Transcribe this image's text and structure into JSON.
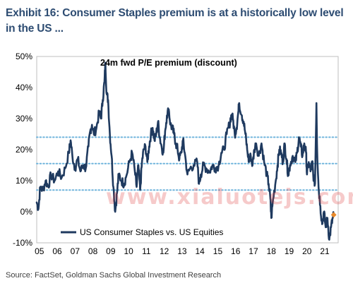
{
  "exhibit_title": "Exhibit 16: Consumer Staples premium is at a historically low level in the US ...",
  "source": "Source: FactSet, Goldman Sachs Global Investment Research",
  "watermark": "www.xialuotejs.com",
  "colors": {
    "title": "#2d4c72",
    "series": "#1f3a5f",
    "reference_lines": "#6fb4dc",
    "marker": "#e8892b"
  },
  "chart_data": {
    "type": "line",
    "title": "24m fwd P/E premium (discount)",
    "xlabel": "",
    "ylabel": "",
    "x_ticks": [
      "05",
      "06",
      "07",
      "08",
      "09",
      "10",
      "11",
      "12",
      "13",
      "14",
      "15",
      "16",
      "17",
      "18",
      "19",
      "20",
      "21"
    ],
    "xlim": [
      2005,
      2021.9
    ],
    "ylim": [
      -10,
      50
    ],
    "y_ticks": [
      50,
      40,
      30,
      20,
      10,
      0,
      -10
    ],
    "y_tick_labels": [
      "50%",
      "40%",
      "30%",
      "20%",
      "10%",
      "0%",
      "-10%"
    ],
    "reference_lines": [
      24,
      15.5,
      7
    ],
    "legend": {
      "label": "US Consumer Staples vs. US Equities",
      "position": "bottom-left"
    },
    "latest_point": {
      "x": 2021.65,
      "y": -1
    },
    "series": [
      {
        "name": "US Consumer Staples vs. US Equities",
        "points": [
          [
            2005.0,
            3
          ],
          [
            2005.1,
            1
          ],
          [
            2005.2,
            8
          ],
          [
            2005.35,
            7
          ],
          [
            2005.5,
            10
          ],
          [
            2005.65,
            8
          ],
          [
            2005.8,
            12
          ],
          [
            2006.0,
            10
          ],
          [
            2006.2,
            13
          ],
          [
            2006.4,
            11
          ],
          [
            2006.6,
            14
          ],
          [
            2006.8,
            19
          ],
          [
            2006.9,
            23
          ],
          [
            2007.0,
            18
          ],
          [
            2007.15,
            14
          ],
          [
            2007.3,
            17
          ],
          [
            2007.45,
            13
          ],
          [
            2007.6,
            15
          ],
          [
            2007.75,
            14
          ],
          [
            2007.9,
            21
          ],
          [
            2008.0,
            26
          ],
          [
            2008.1,
            28
          ],
          [
            2008.2,
            25
          ],
          [
            2008.35,
            27
          ],
          [
            2008.5,
            32
          ],
          [
            2008.6,
            30
          ],
          [
            2008.7,
            36
          ],
          [
            2008.8,
            42
          ],
          [
            2008.85,
            48
          ],
          [
            2008.92,
            38
          ],
          [
            2009.0,
            36
          ],
          [
            2009.1,
            25
          ],
          [
            2009.2,
            18
          ],
          [
            2009.3,
            8
          ],
          [
            2009.4,
            0
          ],
          [
            2009.5,
            6
          ],
          [
            2009.6,
            12
          ],
          [
            2009.75,
            10
          ],
          [
            2009.9,
            9
          ],
          [
            2010.0,
            11
          ],
          [
            2010.2,
            16
          ],
          [
            2010.35,
            19
          ],
          [
            2010.5,
            13
          ],
          [
            2010.6,
            8
          ],
          [
            2010.7,
            15
          ],
          [
            2010.8,
            7
          ],
          [
            2010.9,
            16
          ],
          [
            2011.0,
            20
          ],
          [
            2011.1,
            21
          ],
          [
            2011.2,
            16
          ],
          [
            2011.3,
            21
          ],
          [
            2011.4,
            25
          ],
          [
            2011.5,
            27
          ],
          [
            2011.6,
            23
          ],
          [
            2011.7,
            25
          ],
          [
            2011.8,
            29
          ],
          [
            2011.9,
            24
          ],
          [
            2012.0,
            21
          ],
          [
            2012.1,
            19
          ],
          [
            2012.2,
            26
          ],
          [
            2012.3,
            31
          ],
          [
            2012.4,
            33
          ],
          [
            2012.5,
            28
          ],
          [
            2012.6,
            27
          ],
          [
            2012.7,
            25
          ],
          [
            2012.8,
            22
          ],
          [
            2012.9,
            20
          ],
          [
            2013.0,
            17
          ],
          [
            2013.1,
            19
          ],
          [
            2013.2,
            23
          ],
          [
            2013.3,
            19
          ],
          [
            2013.45,
            12
          ],
          [
            2013.6,
            14
          ],
          [
            2013.8,
            15
          ],
          [
            2014.0,
            16
          ],
          [
            2014.1,
            9
          ],
          [
            2014.2,
            12
          ],
          [
            2014.35,
            15
          ],
          [
            2014.5,
            14
          ],
          [
            2014.7,
            13
          ],
          [
            2014.85,
            15
          ],
          [
            2015.0,
            14
          ],
          [
            2015.2,
            15
          ],
          [
            2015.35,
            19
          ],
          [
            2015.5,
            20
          ],
          [
            2015.65,
            25
          ],
          [
            2015.8,
            28
          ],
          [
            2015.9,
            31
          ],
          [
            2016.0,
            30
          ],
          [
            2016.1,
            25
          ],
          [
            2016.2,
            27
          ],
          [
            2016.3,
            32
          ],
          [
            2016.35,
            35
          ],
          [
            2016.5,
            31
          ],
          [
            2016.6,
            29
          ],
          [
            2016.7,
            25
          ],
          [
            2016.8,
            20
          ],
          [
            2016.9,
            16
          ],
          [
            2017.0,
            18
          ],
          [
            2017.1,
            15
          ],
          [
            2017.2,
            20
          ],
          [
            2017.3,
            22
          ],
          [
            2017.45,
            18
          ],
          [
            2017.6,
            22
          ],
          [
            2017.75,
            16
          ],
          [
            2017.9,
            12
          ],
          [
            2018.0,
            9
          ],
          [
            2018.1,
            4
          ],
          [
            2018.15,
            -2
          ],
          [
            2018.25,
            4
          ],
          [
            2018.4,
            10
          ],
          [
            2018.5,
            15
          ],
          [
            2018.6,
            20
          ],
          [
            2018.7,
            19
          ],
          [
            2018.8,
            16
          ],
          [
            2018.9,
            22
          ],
          [
            2019.0,
            17
          ],
          [
            2019.1,
            12
          ],
          [
            2019.2,
            15
          ],
          [
            2019.35,
            18
          ],
          [
            2019.5,
            16
          ],
          [
            2019.6,
            19
          ],
          [
            2019.7,
            24
          ],
          [
            2019.8,
            21
          ],
          [
            2019.9,
            18
          ],
          [
            2020.0,
            22
          ],
          [
            2020.1,
            19
          ],
          [
            2020.15,
            12
          ],
          [
            2020.25,
            16
          ],
          [
            2020.35,
            13
          ],
          [
            2020.45,
            16
          ],
          [
            2020.5,
            12
          ],
          [
            2020.6,
            9
          ],
          [
            2020.68,
            35
          ],
          [
            2020.72,
            20
          ],
          [
            2020.8,
            8
          ],
          [
            2020.9,
            2
          ],
          [
            2021.0,
            -4
          ],
          [
            2021.1,
            0
          ],
          [
            2021.2,
            -5
          ],
          [
            2021.3,
            -2
          ],
          [
            2021.4,
            -9
          ],
          [
            2021.5,
            -5
          ],
          [
            2021.6,
            -2
          ],
          [
            2021.65,
            -1
          ]
        ]
      }
    ]
  }
}
